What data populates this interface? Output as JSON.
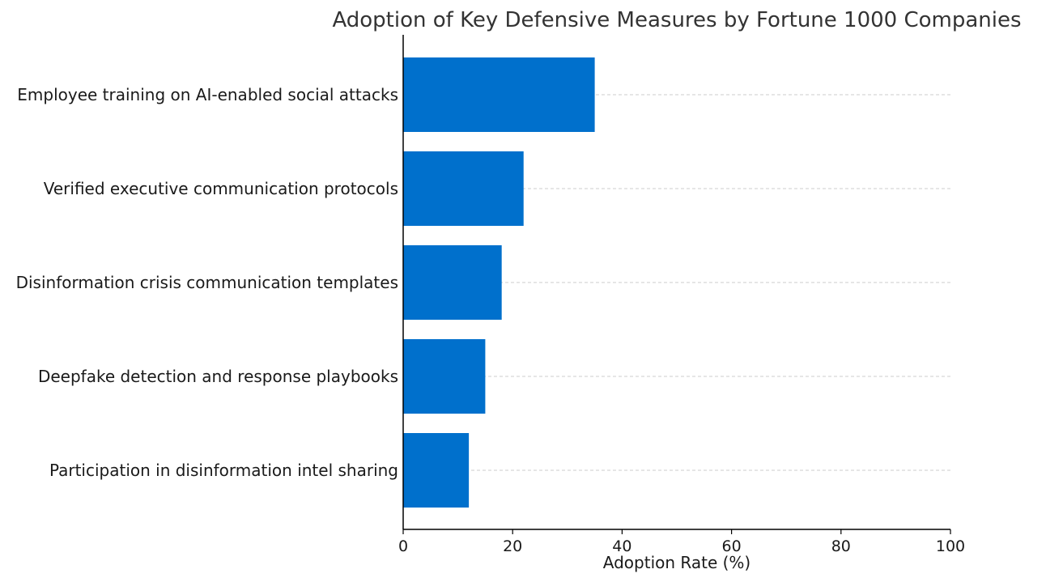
{
  "chart_data": {
    "type": "bar",
    "orientation": "horizontal",
    "title": "Adoption of Key Defensive Measures by Fortune 1000 Companies",
    "xlabel": "Adoption Rate (%)",
    "ylabel": "",
    "categories": [
      "Employee training on AI-enabled social attacks",
      "Verified executive communication protocols",
      "Disinformation crisis communication templates",
      "Deepfake detection and response playbooks",
      "Participation in disinformation intel sharing"
    ],
    "values": [
      35,
      22,
      18,
      15,
      12
    ],
    "xlim": [
      0,
      100
    ],
    "xticks": [
      0,
      20,
      40,
      60,
      80,
      100
    ],
    "grid": "horizontal dashed at category centers",
    "bar_color": "#0070CC",
    "grid_color": "#cccccc"
  }
}
